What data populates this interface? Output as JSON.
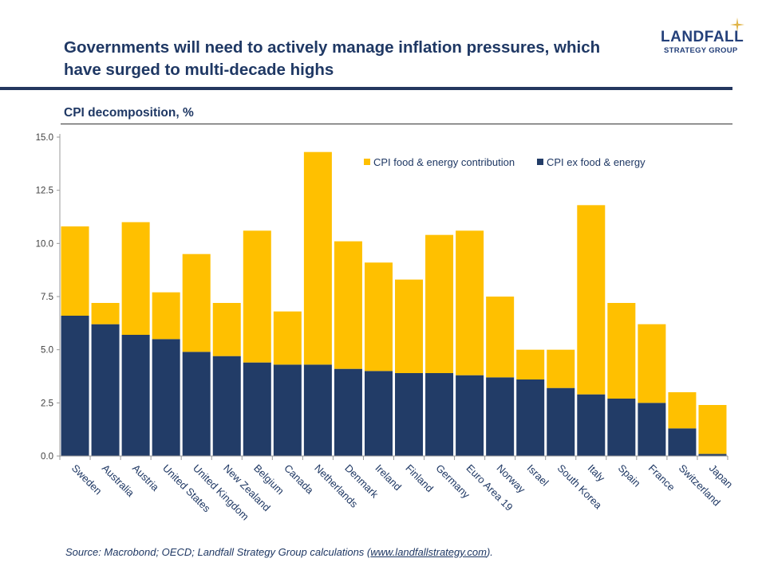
{
  "header": {
    "title": "Governments will need to actively manage inflation pressures, which have surged to multi-decade highs",
    "logo_main": "LANDFALL",
    "logo_sub": "STRATEGY GROUP"
  },
  "footer": {
    "source_prefix": "Source: Macrobond; OECD; Landfall Strategy Group calculations (",
    "source_link": "www.landfallstrategy.com",
    "source_suffix": ")."
  },
  "colors": {
    "food_energy": "#ffc000",
    "ex_food_energy": "#223c67",
    "text": "#1f3864"
  },
  "chart_data": {
    "type": "bar",
    "stacked": true,
    "title": "CPI decomposition, %",
    "xlabel": "",
    "ylabel": "",
    "ylim": [
      0,
      15
    ],
    "yticks": [
      "0.0",
      "2.5",
      "5.0",
      "7.5",
      "10.0",
      "12.5",
      "15.0"
    ],
    "grid": false,
    "legend_position": "top-right",
    "categories": [
      "Sweden",
      "Australia",
      "Austria",
      "United States",
      "United Kingdom",
      "New Zealand",
      "Belgium",
      "Canada",
      "Netherlands",
      "Denmark",
      "Ireland",
      "Finland",
      "Germany",
      "Euro Area 19",
      "Norway",
      "Israel",
      "South Korea",
      "Italy",
      "Spain",
      "France",
      "Switzerland",
      "Japan"
    ],
    "series": [
      {
        "name": "CPI ex food & energy",
        "values": [
          6.6,
          6.2,
          5.7,
          5.5,
          4.9,
          4.7,
          4.4,
          4.3,
          4.3,
          4.1,
          4.0,
          3.9,
          3.9,
          3.8,
          3.7,
          3.6,
          3.2,
          2.9,
          2.7,
          2.5,
          1.3,
          0.1
        ]
      },
      {
        "name": "CPI food & energy contribution",
        "values": [
          4.2,
          1.0,
          5.3,
          2.2,
          4.6,
          2.5,
          6.2,
          2.5,
          10.0,
          6.0,
          5.1,
          4.4,
          6.5,
          6.8,
          3.8,
          1.4,
          1.8,
          8.9,
          4.5,
          3.7,
          1.7,
          2.3
        ]
      }
    ]
  }
}
